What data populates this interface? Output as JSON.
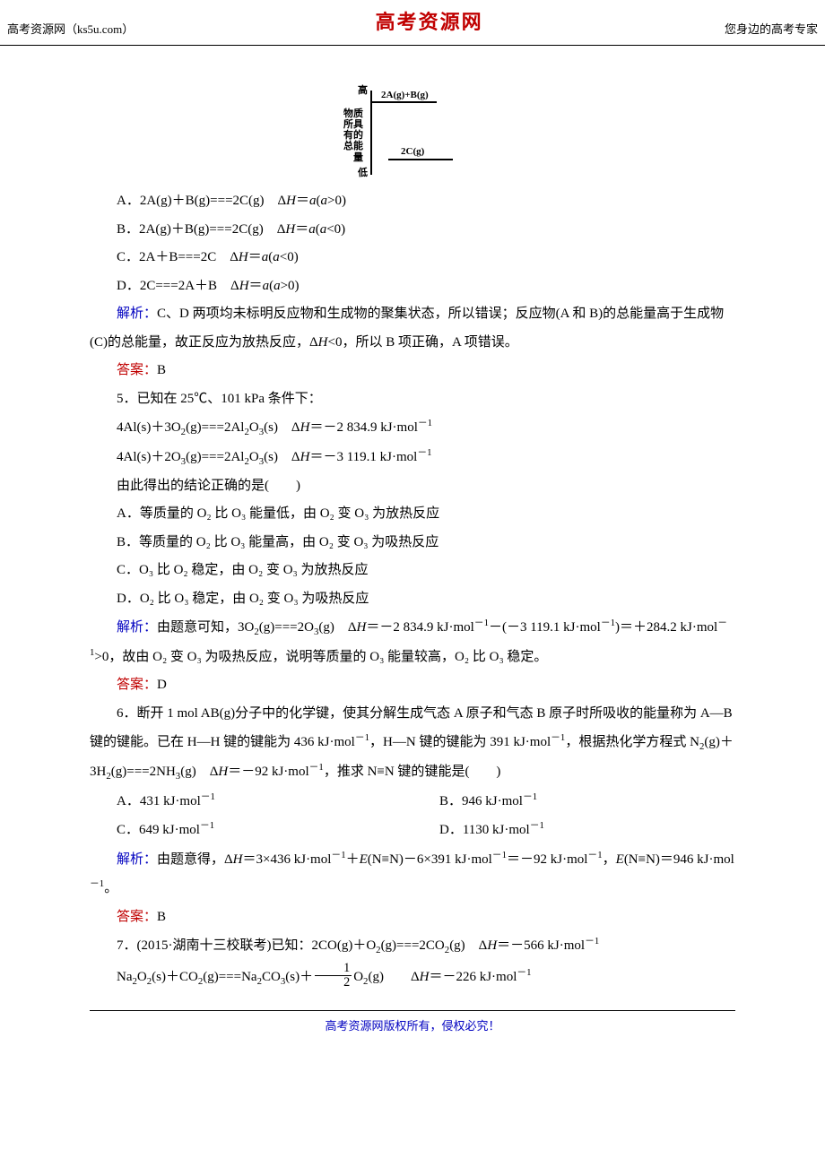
{
  "header": {
    "left": "高考资源网（ks5u.com）",
    "center": "高考资源网",
    "right": "您身边的高考专家"
  },
  "diagram": {
    "y_axis_label": "物质所具有的总能量",
    "top_label": "高",
    "bottom_label": "低",
    "level_top_text": "2A(g)+B(g)",
    "level_bottom_text": "2C(g)",
    "title_fontsize": 11,
    "axis_color": "#000000",
    "background": "#ffffff"
  },
  "q4": {
    "optA": "A．2A(g)＋B(g)===2C(g)　Δ",
    "optA_tail": "(",
    "optA_cond": ">0)",
    "optB": "B．2A(g)＋B(g)===2C(g)　Δ",
    "optB_cond": "<0)",
    "optC": "C．2A＋B===2C　Δ",
    "optC_cond": "<0)",
    "optD": "D．2C===2A＋B　Δ",
    "optD_cond": ">0)",
    "jiexi_lbl": "解析：",
    "jiexi": "C、D 两项均未标明反应物和生成物的聚集状态，所以错误；反应物(A 和 B)的总能量高于生成物(C)的总能量，故正反应为放热反应，Δ",
    "jiexi_tail": "<0，所以 B 项正确，A 项错误。",
    "ans_lbl": "答案：",
    "ans": "B"
  },
  "q5": {
    "stem": "5．已知在 25℃、101 kPa 条件下：",
    "eq1_l": "4Al(s)＋3O",
    "eq1_r": "(g)===2Al",
    "eq1_r2": "O",
    "eq1_r3": "(s)　Δ",
    "eq1_val": "＝－2 834.9 kJ·mol",
    "eq2_l": "4Al(s)＋2O",
    "eq2_r": "(g)===2Al",
    "eq2_r2": "O",
    "eq2_r3": "(s)　Δ",
    "eq2_val": "＝－3 119.1 kJ·mol",
    "conc": "由此得出的结论正确的是(　　)",
    "optA": "A．等质量的 O₂ 比 O₃ 能量低，由 O₂ 变 O₃ 为放热反应",
    "optB": "B．等质量的 O₂ 比 O₃ 能量高，由 O₂ 变 O₃ 为吸热反应",
    "optC": "C．O₃ 比 O₂ 稳定，由 O₂ 变 O₃ 为放热反应",
    "optD": "D．O₂ 比 O₃ 稳定，由 O₂ 变 O₃ 为吸热反应",
    "jiexi_lbl": "解析：",
    "jiexi_1": "由题意可知，3O",
    "jiexi_2": "(g)===2O",
    "jiexi_3": "(g)　Δ",
    "jiexi_4": "＝－2 834.9 kJ·mol",
    "jiexi_5": "－(－3 119.1 kJ·mol",
    "jiexi_6": ")＝＋284.2 kJ·mol",
    "jiexi_7": ">0，故由 O₂ 变 O₃ 为吸热反应，说明等质量的 O₃ 能量较高，O₂ 比 O₃ 稳定。",
    "ans_lbl": "答案：",
    "ans": "D"
  },
  "q6": {
    "stem_1": "6．断开 1 mol AB(g)分子中的化学键，使其分解生成气态 A 原子和气态 B 原子时所吸收的能量称为 A—B 键的键能。已在 H—H 键的键能为 436 kJ·mol",
    "stem_2": "，H—N 键的键能为 391 kJ·mol",
    "stem_3": "，根据热化学方程式 N",
    "stem_4": "(g)＋3H",
    "stem_5": "(g)===2NH",
    "stem_6": "(g)　Δ",
    "stem_7": "＝－92 kJ·mol",
    "stem_8": "，推求 N≡N 键的键能是(　　)",
    "optA": "A．431 kJ·mol",
    "optB": "B．946 kJ·mol",
    "optC": "C．649 kJ·mol",
    "optD": "D．1130 kJ·mol",
    "jiexi_lbl": "解析：",
    "jiexi_1": "由题意得，Δ",
    "jiexi_2": "＝3×436 kJ·mol",
    "jiexi_3": "＋",
    "jiexi_4": "(N≡N)－6×391 kJ·mol",
    "jiexi_5": "＝－92 kJ·mol",
    "jiexi_6": "，",
    "jiexi_7": "(N≡N)＝946 kJ·mol",
    "jiexi_8": "。",
    "ans_lbl": "答案：",
    "ans": "B"
  },
  "q7": {
    "stem_1": "7．(2015·湖南十三校联考)已知：2CO(g)＋O",
    "stem_2": "(g)===2CO",
    "stem_3": "(g)　Δ",
    "stem_4": "＝－566 kJ·mol",
    "eq2_1": "Na",
    "eq2_2": "O",
    "eq2_3": "(s)＋CO",
    "eq2_4": "(g)===Na",
    "eq2_5": "CO",
    "eq2_6": "(s)＋",
    "eq2_7": "O",
    "eq2_8": "(g)　　Δ",
    "eq2_9": "＝－226 kJ·mol",
    "frac_n": "1",
    "frac_d": "2"
  },
  "footer": "高考资源网版权所有，侵权必究！",
  "style": {
    "accent_blue": "#0000c0",
    "accent_red": "#c00000",
    "text_color": "#000000",
    "body_fontsize": 15
  }
}
